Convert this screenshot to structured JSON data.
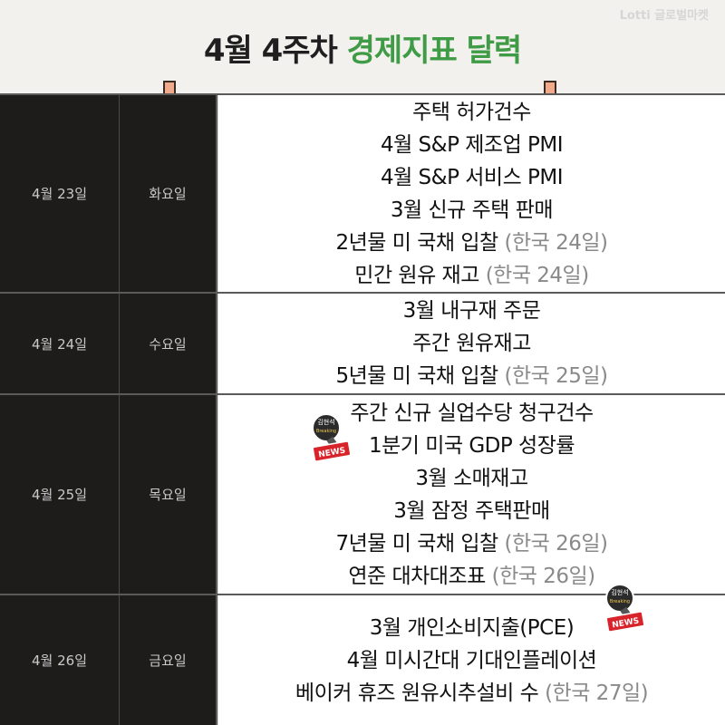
{
  "header": {
    "logo": "Lotti 글로벌마켓",
    "title_main": "4월 4주차 ",
    "title_accent": "경제지표 달력",
    "accent_color": "#3f9b45"
  },
  "stickers": [
    {
      "name": "breaking-news-sticker",
      "top_label": "김현석",
      "mic_label": "Breaking",
      "badge": "NEWS"
    },
    {
      "name": "breaking-news-sticker",
      "top_label": "김현석",
      "mic_label": "Breaking",
      "badge": "NEWS"
    }
  ],
  "calendar": {
    "rows": [
      {
        "date": "4월 23일",
        "day": "화요일",
        "events": [
          {
            "text": "주택 허가건수",
            "note": ""
          },
          {
            "text": "4월 S&P 제조업 PMI",
            "note": ""
          },
          {
            "text": "4월 S&P 서비스 PMI",
            "note": ""
          },
          {
            "text": "3월 신규 주택 판매",
            "note": ""
          },
          {
            "text": "2년물 미 국채 입찰 ",
            "note": "(한국 24일)"
          },
          {
            "text": "민간 원유 재고 ",
            "note": "(한국 24일)"
          }
        ]
      },
      {
        "date": "4월 24일",
        "day": "수요일",
        "events": [
          {
            "text": "3월 내구재 주문",
            "note": ""
          },
          {
            "text": "주간 원유재고",
            "note": ""
          },
          {
            "text": "5년물 미 국채 입찰 ",
            "note": "(한국 25일)"
          }
        ]
      },
      {
        "date": "4월 25일",
        "day": "목요일",
        "events": [
          {
            "text": "주간 신규 실업수당 청구건수",
            "note": ""
          },
          {
            "text": "1분기 미국 GDP 성장률",
            "note": ""
          },
          {
            "text": "3월 소매재고",
            "note": ""
          },
          {
            "text": "3월 잠정 주택판매",
            "note": ""
          },
          {
            "text": "7년물 미 국채 입찰 ",
            "note": "(한국 26일)"
          },
          {
            "text": "연준 대차대조표 ",
            "note": "(한국 26일)"
          }
        ]
      },
      {
        "date": "4월 26일",
        "day": "금요일",
        "events": [
          {
            "text": "3월 개인소비지출(PCE)",
            "note": ""
          },
          {
            "text": "4월 미시간대 기대인플레이션",
            "note": ""
          },
          {
            "text": "베이커 휴즈 원유시추설비 수 ",
            "note": "(한국 27일)"
          }
        ]
      }
    ]
  }
}
